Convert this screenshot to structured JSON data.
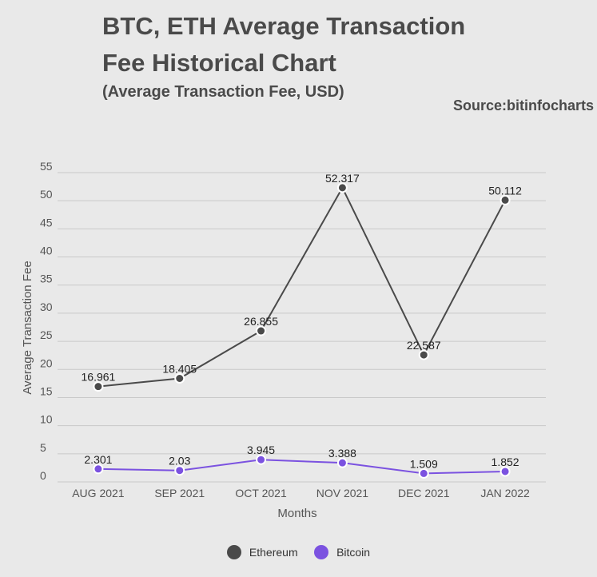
{
  "header": {
    "title": "BTC, ETH Average Transaction Fee Historical Chart",
    "subtitle": "(Average Transaction Fee, USD)",
    "source": "Source:bitinfocharts"
  },
  "chart_data": {
    "type": "line",
    "categories": [
      "AUG 2021",
      "SEP 2021",
      "OCT 2021",
      "NOV 2021",
      "DEC 2021",
      "JAN 2022"
    ],
    "xlabel": "Months",
    "ylabel": "Average Transaction Fee",
    "ylim": [
      0,
      55
    ],
    "yticks": [
      0,
      5,
      10,
      15,
      20,
      25,
      30,
      35,
      40,
      45,
      50,
      55
    ],
    "grid": true,
    "legend_position": "bottom",
    "series": [
      {
        "name": "Ethereum",
        "color": "#4a4a4a",
        "values": [
          16.961,
          18.405,
          26.855,
          52.317,
          22.587,
          50.112
        ],
        "labels": [
          "16.961",
          "18.405",
          "26.855",
          "52.317",
          "22.587",
          "50.112"
        ]
      },
      {
        "name": "Bitcoin",
        "color": "#7b52e0",
        "values": [
          2.301,
          2.03,
          3.945,
          3.388,
          1.509,
          1.852
        ],
        "labels": [
          "2.301",
          "2.03",
          "3.945",
          "3.388",
          "1.509",
          "1.852"
        ]
      }
    ]
  }
}
